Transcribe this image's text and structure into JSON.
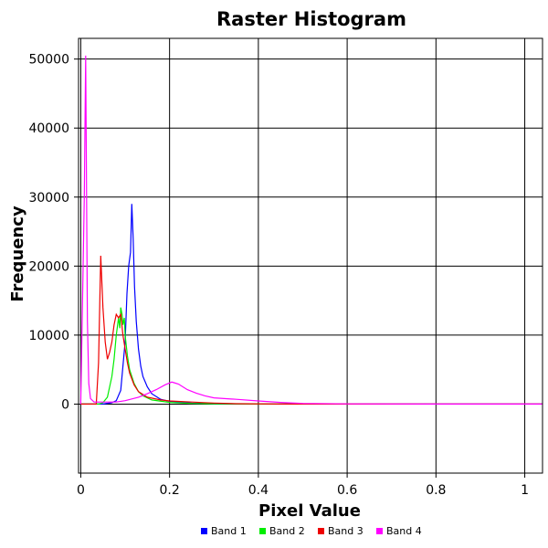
{
  "chart_data": {
    "type": "line",
    "title": "Raster Histogram",
    "xlabel": "Pixel Value",
    "ylabel": "Frequency",
    "xlim": [
      -0.005,
      1.04
    ],
    "ylim": [
      -10000,
      53000
    ],
    "x_ticks": [
      0,
      0.2,
      0.4,
      0.6,
      0.8,
      1
    ],
    "x_tick_labels": [
      "0",
      "0.2",
      "0.4",
      "0.6",
      "0.8",
      "1"
    ],
    "y_ticks": [
      0,
      10000,
      20000,
      30000,
      40000,
      50000
    ],
    "y_tick_labels": [
      "0",
      "10000",
      "20000",
      "30000",
      "40000",
      "50000"
    ],
    "grid": true,
    "legend_position": "bottom",
    "series": [
      {
        "name": "Band 1",
        "color": "#0000ff",
        "x": [
          0.0,
          0.05,
          0.07,
          0.08,
          0.09,
          0.1,
          0.104,
          0.108,
          0.112,
          0.115,
          0.118,
          0.121,
          0.125,
          0.13,
          0.135,
          0.14,
          0.15,
          0.16,
          0.18,
          0.2,
          0.25,
          0.3,
          0.4,
          0.5,
          0.6,
          0.8,
          1.05
        ],
        "y": [
          0,
          0,
          200,
          500,
          2000,
          9000,
          16000,
          20000,
          22000,
          29000,
          24000,
          17000,
          12000,
          8000,
          5500,
          4000,
          2500,
          1500,
          700,
          400,
          150,
          50,
          0,
          0,
          0,
          0,
          0
        ]
      },
      {
        "name": "Band 2",
        "color": "#00ee00",
        "x": [
          0.0,
          0.04,
          0.05,
          0.06,
          0.07,
          0.075,
          0.08,
          0.085,
          0.088,
          0.09,
          0.093,
          0.095,
          0.098,
          0.1,
          0.105,
          0.11,
          0.12,
          0.13,
          0.14,
          0.16,
          0.2,
          0.25,
          0.3,
          0.4,
          0.6,
          1.05
        ],
        "y": [
          0,
          0,
          200,
          1000,
          4000,
          6500,
          10000,
          12500,
          11000,
          14000,
          13000,
          11500,
          12500,
          10000,
          7000,
          5000,
          3000,
          1800,
          1200,
          600,
          250,
          100,
          30,
          0,
          0,
          0
        ]
      },
      {
        "name": "Band 3",
        "color": "#ee0000",
        "x": [
          0.0,
          0.035,
          0.04,
          0.045,
          0.05,
          0.055,
          0.06,
          0.065,
          0.07,
          0.075,
          0.08,
          0.085,
          0.09,
          0.095,
          0.1,
          0.105,
          0.11,
          0.12,
          0.13,
          0.15,
          0.18,
          0.2,
          0.25,
          0.3,
          0.35,
          0.45,
          0.6,
          1.05
        ],
        "y": [
          0,
          0,
          6000,
          21500,
          14000,
          9000,
          6500,
          7500,
          9000,
          11500,
          13000,
          12500,
          13000,
          10000,
          8000,
          6000,
          4500,
          2800,
          1800,
          1000,
          600,
          450,
          300,
          150,
          60,
          10,
          0,
          0
        ]
      },
      {
        "name": "Band 4",
        "color": "#ff00ff",
        "x": [
          0.0,
          0.008,
          0.011,
          0.013,
          0.015,
          0.018,
          0.022,
          0.03,
          0.05,
          0.08,
          0.1,
          0.13,
          0.15,
          0.17,
          0.19,
          0.205,
          0.21,
          0.22,
          0.24,
          0.26,
          0.28,
          0.3,
          0.35,
          0.4,
          0.45,
          0.5,
          0.6,
          0.8,
          1.05
        ],
        "y": [
          0,
          30000,
          50500,
          30000,
          12000,
          3000,
          800,
          300,
          300,
          300,
          500,
          1000,
          1500,
          2100,
          2800,
          3200,
          3100,
          2900,
          2100,
          1600,
          1200,
          900,
          700,
          450,
          250,
          100,
          30,
          0,
          0
        ]
      }
    ]
  }
}
